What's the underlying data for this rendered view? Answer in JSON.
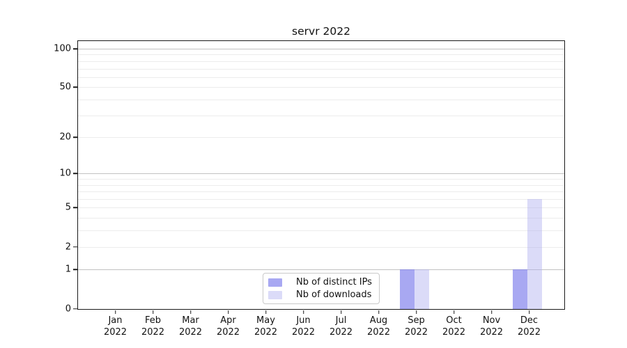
{
  "chart_data": {
    "type": "bar",
    "title": "servr 2022",
    "categories": [
      "Jan 2022",
      "Feb 2022",
      "Mar 2022",
      "Apr 2022",
      "May 2022",
      "Jun 2022",
      "Jul 2022",
      "Aug 2022",
      "Sep 2022",
      "Oct 2022",
      "Nov 2022",
      "Dec 2022"
    ],
    "series": [
      {
        "name": "Nb of distinct IPs",
        "color": "#7A7AEBA6",
        "values": [
          0,
          0,
          0,
          0,
          0,
          0,
          0,
          0,
          1,
          0,
          0,
          1
        ]
      },
      {
        "name": "Nb of downloads",
        "color": "#B0B0F073",
        "values": [
          0,
          0,
          0,
          0,
          0,
          0,
          0,
          0,
          1,
          0,
          0,
          6
        ]
      }
    ],
    "xlabel": "",
    "ylabel": "",
    "yscale": "log1p",
    "ylim": [
      0,
      113
    ],
    "yticks": [
      0,
      1,
      2,
      5,
      10,
      20,
      50,
      100
    ],
    "major_gridlines": [
      1,
      10,
      100
    ],
    "minor_gridlines": [
      2,
      3,
      4,
      5,
      6,
      7,
      8,
      9,
      20,
      30,
      40,
      50,
      60,
      70,
      80,
      90
    ],
    "grid": "horizontal",
    "legend_position": "bottom-center",
    "colors": {
      "axis": "#1a1a1a",
      "major_grid": "#c2c2c2",
      "minor_grid": "#ececec",
      "legend_border": "#c9c9c9",
      "background": "#ffffff"
    }
  }
}
